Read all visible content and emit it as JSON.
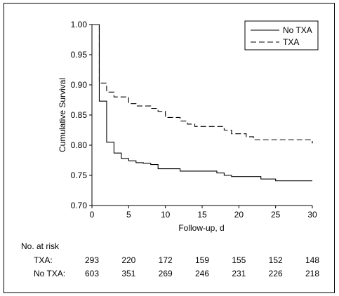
{
  "chart_data": {
    "type": "line",
    "title": "",
    "xlabel": "Follow-up, d",
    "ylabel": "Cumulative Survival",
    "xlim": [
      0,
      30
    ],
    "ylim": [
      0.7,
      1.0
    ],
    "x_ticks": [
      "0",
      "5",
      "10",
      "15",
      "20",
      "25",
      "30"
    ],
    "y_ticks": [
      "0.70",
      "0.75",
      "0.80",
      "0.85",
      "0.90",
      "0.95",
      "1.00"
    ],
    "legend_position": "top-right",
    "grid": false,
    "series": [
      {
        "name": "No TXA",
        "style": "solid",
        "step": [
          [
            0,
            1.0
          ],
          [
            1,
            0.873
          ],
          [
            2,
            0.805
          ],
          [
            3,
            0.787
          ],
          [
            4,
            0.778
          ],
          [
            5,
            0.774
          ],
          [
            6,
            0.771
          ],
          [
            7,
            0.77
          ],
          [
            8,
            0.768
          ],
          [
            9,
            0.761
          ],
          [
            12,
            0.757
          ],
          [
            17,
            0.754
          ],
          [
            18,
            0.75
          ],
          [
            19,
            0.748
          ],
          [
            23,
            0.744
          ],
          [
            25,
            0.741
          ],
          [
            30,
            0.741
          ]
        ]
      },
      {
        "name": "TXA",
        "style": "dashed",
        "step": [
          [
            0,
            1.0
          ],
          [
            1,
            0.903
          ],
          [
            2,
            0.888
          ],
          [
            3,
            0.88
          ],
          [
            5,
            0.869
          ],
          [
            6,
            0.865
          ],
          [
            8,
            0.861
          ],
          [
            9,
            0.856
          ],
          [
            10,
            0.846
          ],
          [
            12,
            0.84
          ],
          [
            13,
            0.835
          ],
          [
            14,
            0.831
          ],
          [
            18,
            0.825
          ],
          [
            19,
            0.819
          ],
          [
            21,
            0.814
          ],
          [
            22,
            0.809
          ],
          [
            29.5,
            0.809
          ],
          [
            30,
            0.803
          ]
        ]
      }
    ]
  },
  "risk_table": {
    "title": "No. at risk",
    "rows": [
      {
        "label": "TXA:",
        "values": [
          "293",
          "220",
          "172",
          "159",
          "155",
          "152",
          "148"
        ]
      },
      {
        "label": "No TXA:",
        "values": [
          "603",
          "351",
          "269",
          "246",
          "231",
          "226",
          "218"
        ]
      }
    ]
  }
}
